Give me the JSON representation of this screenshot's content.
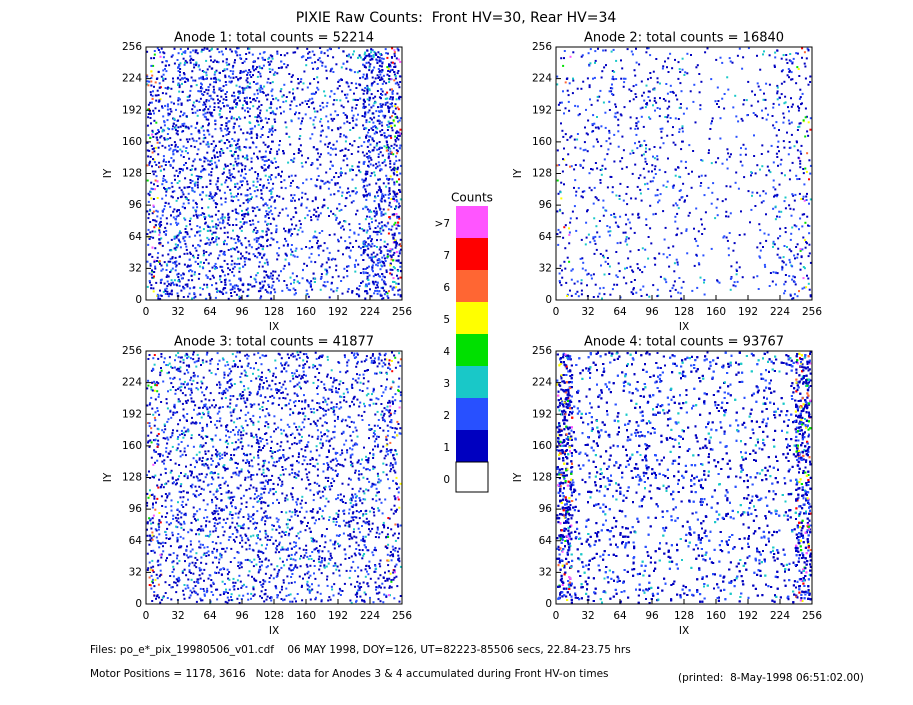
{
  "title": "PIXIE Raw Counts:  Front HV=30, Rear HV=34",
  "chart_data": [
    {
      "type": "heatmap",
      "title": "Anode 1: total counts = 52214",
      "xlabel": "IX",
      "ylabel": "IY",
      "xlim": [
        0,
        256
      ],
      "ylim": [
        0,
        256
      ],
      "xticks": [
        0,
        32,
        64,
        96,
        128,
        160,
        192,
        224,
        256
      ],
      "yticks": [
        0,
        32,
        64,
        96,
        128,
        160,
        192,
        224,
        256
      ]
    },
    {
      "type": "heatmap",
      "title": "Anode 2: total counts = 16840",
      "xlabel": "IX",
      "ylabel": "IY",
      "xlim": [
        0,
        256
      ],
      "ylim": [
        0,
        256
      ],
      "xticks": [
        0,
        32,
        64,
        96,
        128,
        160,
        192,
        224,
        256
      ],
      "yticks": [
        0,
        32,
        64,
        96,
        128,
        160,
        192,
        224,
        256
      ]
    },
    {
      "type": "heatmap",
      "title": "Anode 3: total counts = 41877",
      "xlabel": "IX",
      "ylabel": "IY",
      "xlim": [
        0,
        256
      ],
      "ylim": [
        0,
        256
      ],
      "xticks": [
        0,
        32,
        64,
        96,
        128,
        160,
        192,
        224,
        256
      ],
      "yticks": [
        0,
        32,
        64,
        96,
        128,
        160,
        192,
        224,
        256
      ]
    },
    {
      "type": "heatmap",
      "title": "Anode 4: total counts = 93767",
      "xlabel": "IX",
      "ylabel": "IY",
      "xlim": [
        0,
        256
      ],
      "ylim": [
        0,
        256
      ],
      "xticks": [
        0,
        32,
        64,
        96,
        128,
        160,
        192,
        224,
        256
      ],
      "yticks": [
        0,
        32,
        64,
        96,
        128,
        160,
        192,
        224,
        256
      ]
    }
  ],
  "colorbar": {
    "title": "Counts",
    "levels": [
      {
        "label": ">7",
        "color": "#ff55ff"
      },
      {
        "label": "7",
        "color": "#ff0000"
      },
      {
        "label": "6",
        "color": "#ff6633"
      },
      {
        "label": "5",
        "color": "#ffff00"
      },
      {
        "label": "4",
        "color": "#00e000"
      },
      {
        "label": "3",
        "color": "#19c8c8"
      },
      {
        "label": "2",
        "color": "#2850ff"
      },
      {
        "label": "1",
        "color": "#0000c0"
      },
      {
        "label": "0",
        "color": "#ffffff"
      }
    ]
  },
  "footer": {
    "files": "Files: po_e*_pix_19980506_v01.cdf    06 MAY 1998, DOY=126, UT=82223-85506 secs, 22.84-23.75 hrs",
    "motor": "Motor Positions = 1178, 3616   Note: data for Anodes 3 & 4 accumulated during Front HV-on times",
    "printed": "(printed:  8-May-1998 06:51:02.00)"
  }
}
